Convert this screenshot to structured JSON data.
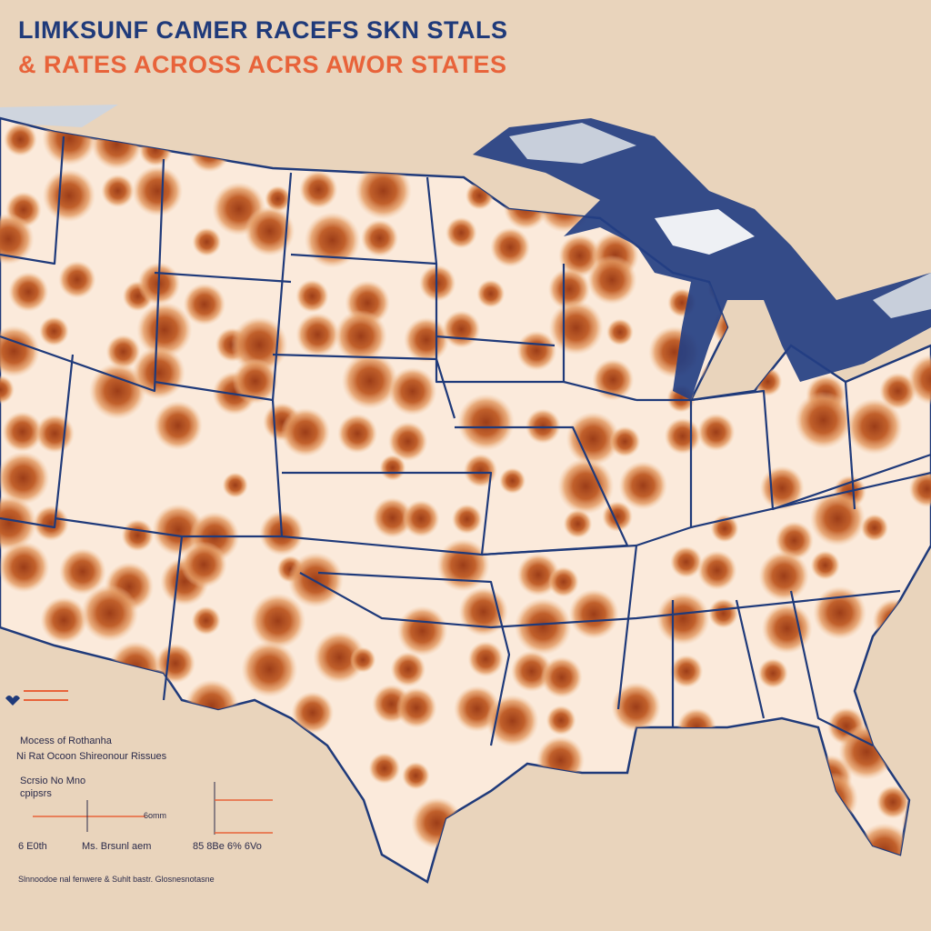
{
  "header": {
    "title_line_1": "LIMKSUNF CAMER RACEFS  SKN STALS",
    "title_line_2": "& RATES ACROSS ACRS AWOR STATES"
  },
  "legend": {
    "line_1": "Mocess of Rothanha",
    "line_2": "Ni Rat Ocoon Shireonour Rissues",
    "scale_title": "Scrsio No Mno",
    "scale_subtitle": "cpipsrs",
    "scale_max": "6omm",
    "scale_left": "6 E0th",
    "scale_right": "Ms. Brsunl aem",
    "second_scale": "85 8Be 6% 6Vo"
  },
  "footer": {
    "source": "Slnnoodoe nal fenwere & Suhlt bastr. Glosnesnotasne"
  }
}
